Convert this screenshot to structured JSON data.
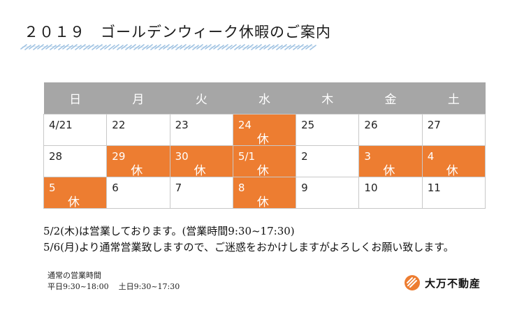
{
  "title": "２０１９　ゴールデンウィーク休暇のご案内",
  "calendar": {
    "weekdays": [
      "日",
      "月",
      "火",
      "水",
      "木",
      "金",
      "土"
    ],
    "holiday_label": "休",
    "weeks": [
      [
        {
          "date": "4/21",
          "off": false
        },
        {
          "date": "22",
          "off": false
        },
        {
          "date": "23",
          "off": false
        },
        {
          "date": "24",
          "off": true
        },
        {
          "date": "25",
          "off": false
        },
        {
          "date": "26",
          "off": false
        },
        {
          "date": "27",
          "off": false
        }
      ],
      [
        {
          "date": "28",
          "off": false
        },
        {
          "date": "29",
          "off": true
        },
        {
          "date": "30",
          "off": true
        },
        {
          "date": "5/1",
          "off": true
        },
        {
          "date": "2",
          "off": false
        },
        {
          "date": "3",
          "off": true
        },
        {
          "date": "4",
          "off": true
        }
      ],
      [
        {
          "date": "5",
          "off": true
        },
        {
          "date": "6",
          "off": false
        },
        {
          "date": "7",
          "off": false
        },
        {
          "date": "8",
          "off": true
        },
        {
          "date": "9",
          "off": false
        },
        {
          "date": "10",
          "off": false
        },
        {
          "date": "11",
          "off": false
        }
      ]
    ]
  },
  "notice": {
    "line1": "5/2(木)は営業しております。(営業時間9:30~17:30)",
    "line2": "5/6(月)より通常営業致しますので、ご迷惑をおかけしますがよろしくお願い致します。"
  },
  "hours": {
    "title": "通常の営業時間",
    "weekday": "平日9:30~18:00",
    "weekend": "土日9:30~17:30"
  },
  "logo": {
    "text": "大万不動産",
    "icon": "company-logo-icon",
    "color": "#ed7d31"
  },
  "colors": {
    "header": "#a6a6a6",
    "holiday": "#ed7d31",
    "brush": "#8fb8dd"
  }
}
